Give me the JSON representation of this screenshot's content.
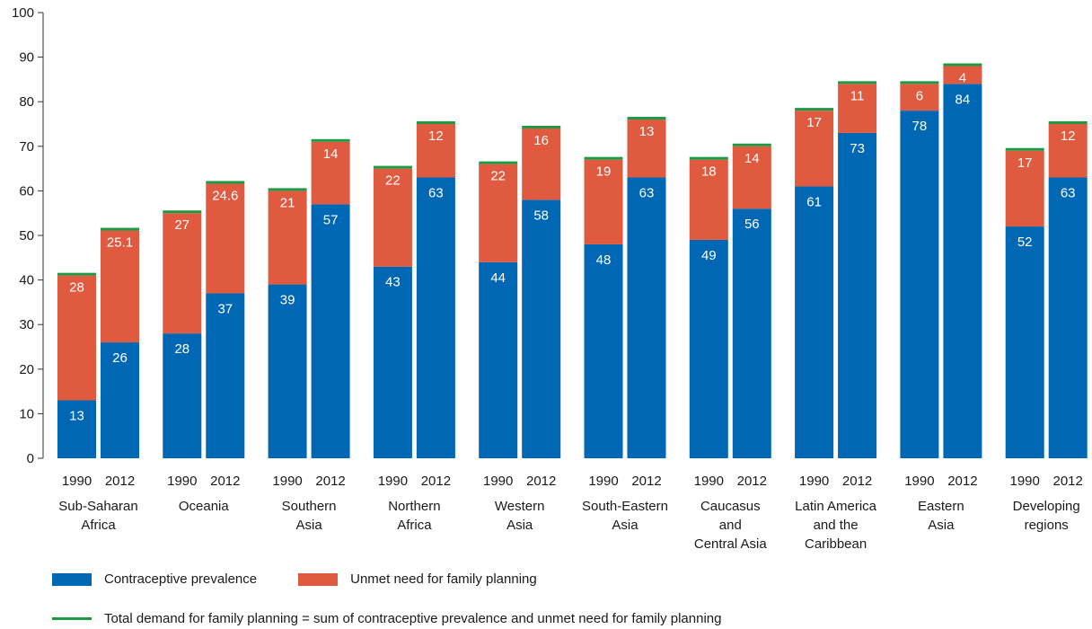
{
  "chart_data": {
    "type": "bar",
    "stacked": true,
    "ylim": [
      0,
      100
    ],
    "yticks": [
      0,
      10,
      20,
      30,
      40,
      50,
      60,
      70,
      80,
      90,
      100
    ],
    "grid": false,
    "legend_placement": "bottom",
    "groups": [
      {
        "label": "Sub-Saharan Africa",
        "label_lines": [
          "Sub-Saharan",
          "Africa"
        ],
        "bars": [
          {
            "year": "1990",
            "contraceptive": 13,
            "unmet": 28,
            "unmet_label": "28"
          },
          {
            "year": "2012",
            "contraceptive": 26,
            "unmet": 25.1,
            "unmet_label": "25.1"
          }
        ]
      },
      {
        "label": "Oceania",
        "label_lines": [
          "Oceania"
        ],
        "bars": [
          {
            "year": "1990",
            "contraceptive": 28,
            "unmet": 27,
            "unmet_label": "27"
          },
          {
            "year": "2012",
            "contraceptive": 37,
            "unmet": 24.6,
            "unmet_label": "24.6"
          }
        ]
      },
      {
        "label": "Southern Asia",
        "label_lines": [
          "Southern",
          "Asia"
        ],
        "bars": [
          {
            "year": "1990",
            "contraceptive": 39,
            "unmet": 21,
            "unmet_label": "21"
          },
          {
            "year": "2012",
            "contraceptive": 57,
            "unmet": 14,
            "unmet_label": "14"
          }
        ]
      },
      {
        "label": "Northern Africa",
        "label_lines": [
          "Northern",
          "Africa"
        ],
        "bars": [
          {
            "year": "1990",
            "contraceptive": 43,
            "unmet": 22,
            "unmet_label": "22"
          },
          {
            "year": "2012",
            "contraceptive": 63,
            "unmet": 12,
            "unmet_label": "12"
          }
        ]
      },
      {
        "label": "Western Asia",
        "label_lines": [
          "Western",
          "Asia"
        ],
        "bars": [
          {
            "year": "1990",
            "contraceptive": 44,
            "unmet": 22,
            "unmet_label": "22"
          },
          {
            "year": "2012",
            "contraceptive": 58,
            "unmet": 16,
            "unmet_label": "16"
          }
        ]
      },
      {
        "label": "South-Eastern Asia",
        "label_lines": [
          "South-Eastern",
          "Asia"
        ],
        "bars": [
          {
            "year": "1990",
            "contraceptive": 48,
            "unmet": 19,
            "unmet_label": "19"
          },
          {
            "year": "2012",
            "contraceptive": 63,
            "unmet": 13,
            "unmet_label": "13"
          }
        ]
      },
      {
        "label": "Caucasus and Central Asia",
        "label_lines": [
          "Caucasus",
          "and",
          "Central Asia"
        ],
        "bars": [
          {
            "year": "1990",
            "contraceptive": 49,
            "unmet": 18,
            "unmet_label": "18"
          },
          {
            "year": "2012",
            "contraceptive": 56,
            "unmet": 14,
            "unmet_label": "14"
          }
        ]
      },
      {
        "label": "Latin America and the Caribbean",
        "label_lines": [
          "Latin America",
          "and the",
          "Caribbean"
        ],
        "bars": [
          {
            "year": "1990",
            "contraceptive": 61,
            "unmet": 17,
            "unmet_label": "17"
          },
          {
            "year": "2012",
            "contraceptive": 73,
            "unmet": 11,
            "unmet_label": "11"
          }
        ]
      },
      {
        "label": "Eastern Asia",
        "label_lines": [
          "Eastern",
          "Asia"
        ],
        "bars": [
          {
            "year": "1990",
            "contraceptive": 78,
            "unmet": 6,
            "unmet_label": "6"
          },
          {
            "year": "2012",
            "contraceptive": 84,
            "unmet": 4,
            "unmet_label": "4"
          }
        ]
      },
      {
        "label": "Developing regions",
        "label_lines": [
          "Developing",
          "regions"
        ],
        "bars": [
          {
            "year": "1990",
            "contraceptive": 52,
            "unmet": 17,
            "unmet_label": "17"
          },
          {
            "year": "2012",
            "contraceptive": 63,
            "unmet": 12,
            "unmet_label": "12"
          }
        ]
      }
    ],
    "series": [
      {
        "name": "Contraceptive prevalence",
        "key": "contraceptive",
        "color": "#0067b4"
      },
      {
        "name": "Unmet need for family planning",
        "key": "unmet",
        "color": "#e05a3f"
      },
      {
        "name": "Total demand for family planning = sum of contraceptive prevalence and unmet need for family planning",
        "key": "total",
        "color": "#1e9a44"
      }
    ]
  },
  "legend": {
    "contraceptive": "Contraceptive prevalence",
    "unmet": "Unmet need for family planning",
    "total": "Total demand for family planning = sum of contraceptive prevalence and unmet need for family planning"
  },
  "colors": {
    "contraceptive": "#0067b4",
    "unmet": "#e05a3f",
    "total": "#1e9a44",
    "axis": "#333333"
  }
}
